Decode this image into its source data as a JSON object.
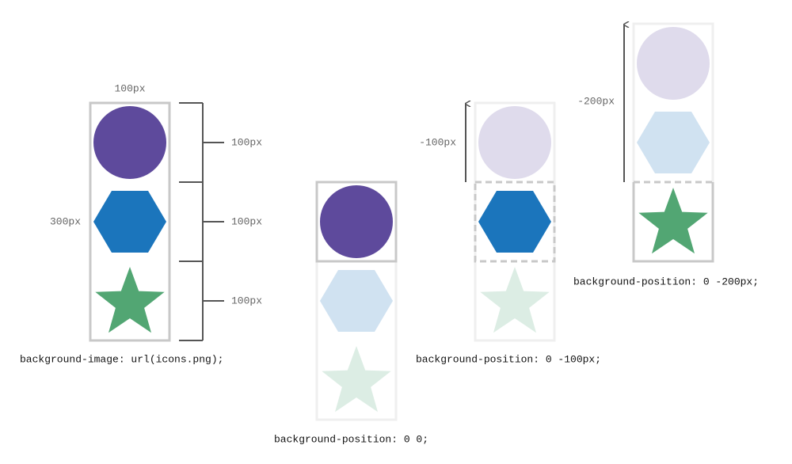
{
  "sprite_source": {
    "width_label": "100px",
    "height_label": "300px",
    "segment_labels": [
      "100px",
      "100px",
      "100px"
    ],
    "caption": "background-image: url(icons.png);"
  },
  "position_zero": {
    "caption": "background-position: 0 0;"
  },
  "position_minus_100": {
    "offset_label": "-100px",
    "caption": "background-position: 0 -100px;"
  },
  "position_minus_200": {
    "offset_label": "-200px",
    "caption": "background-position: 0 -200px;"
  }
}
